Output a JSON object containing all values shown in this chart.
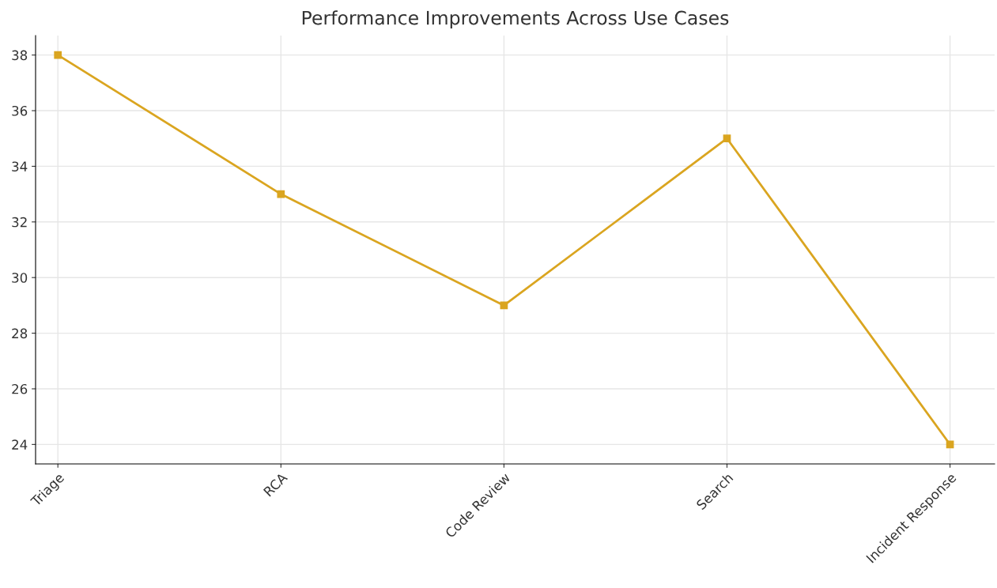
{
  "chart_data": {
    "type": "line",
    "title": "Performance Improvements Across Use Cases",
    "categories": [
      "Triage",
      "RCA",
      "Code Review",
      "Search",
      "Incident Response"
    ],
    "series": [
      {
        "color": "#daa520",
        "values": [
          38,
          33,
          29,
          35,
          24
        ]
      }
    ],
    "ylim": [
      23.3,
      38.7
    ],
    "yticks": [
      24,
      26,
      28,
      30,
      32,
      34,
      36,
      38
    ],
    "grid": true,
    "marker": "square",
    "line_style": "solid"
  }
}
